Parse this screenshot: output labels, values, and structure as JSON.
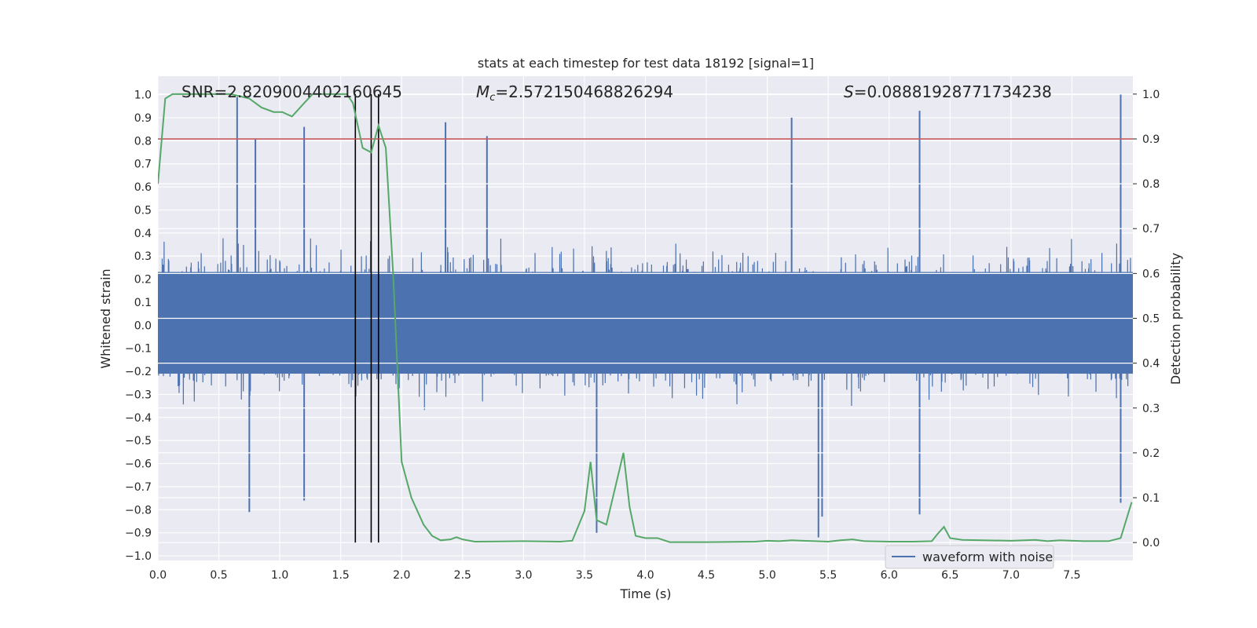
{
  "chart_data": {
    "type": "line",
    "title": "stats at each timestep for test data 18192 [signal=1]",
    "xlabel": "Time (s)",
    "ylabel": "Whitened strain",
    "ylabel_right": "Detection probability",
    "xlim": [
      0.0,
      8.0
    ],
    "ylim": [
      -1.02,
      1.08
    ],
    "ylim_right": [
      -0.04,
      1.04
    ],
    "x_ticks": [
      "0.0",
      "0.5",
      "1.0",
      "1.5",
      "2.0",
      "2.5",
      "3.0",
      "3.5",
      "4.0",
      "4.5",
      "5.0",
      "5.5",
      "6.0",
      "6.5",
      "7.0",
      "7.5"
    ],
    "x_tick_values": [
      0,
      0.5,
      1,
      1.5,
      2,
      2.5,
      3,
      3.5,
      4,
      4.5,
      5,
      5.5,
      6,
      6.5,
      7,
      7.5
    ],
    "y_ticks": [
      "1.0",
      "0.9",
      "0.8",
      "0.7",
      "0.6",
      "0.5",
      "0.4",
      "0.3",
      "0.2",
      "0.1",
      "0.0",
      "−0.1",
      "−0.2",
      "−0.3",
      "−0.4",
      "−0.5",
      "−0.6",
      "−0.7",
      "−0.8",
      "−0.9",
      "−1.0"
    ],
    "y_tick_values": [
      1.0,
      0.9,
      0.8,
      0.7,
      0.6,
      0.5,
      0.4,
      0.3,
      0.2,
      0.1,
      0.0,
      -0.1,
      -0.2,
      -0.3,
      -0.4,
      -0.5,
      -0.6,
      -0.7,
      -0.8,
      -0.9,
      -1.0
    ],
    "y_ticks_right": [
      "1.0",
      "0.9",
      "0.8",
      "0.7",
      "0.6",
      "0.5",
      "0.4",
      "0.3",
      "0.2",
      "0.1",
      "0.0"
    ],
    "y_tick_values_right": [
      1.0,
      0.9,
      0.8,
      0.7,
      0.6,
      0.5,
      0.4,
      0.3,
      0.2,
      0.1,
      0.0
    ],
    "annotations": {
      "snr": "SNR=2.8209004402160645",
      "mc_symbol": "M",
      "mc_subscript": "c",
      "mc_value": "=2.572150468826294",
      "s_symbol": "S",
      "s_value": "=0.08881928771734238"
    },
    "threshold": {
      "value": 0.9,
      "axis": "right",
      "color": "#c44e52"
    },
    "vertical_lines": [
      1.62,
      1.75,
      1.81
    ],
    "waveform": {
      "name": "waveform with noise",
      "color": "#4c72b0",
      "samples": 4096,
      "t_range": [
        0.0,
        7.99
      ],
      "envelope": [
        -0.35,
        0.42
      ],
      "peaks_top": [
        [
          0.65,
          0.99
        ],
        [
          0.8,
          0.81
        ],
        [
          1.2,
          0.86
        ],
        [
          2.36,
          0.88
        ],
        [
          2.7,
          0.82
        ],
        [
          5.2,
          0.9
        ],
        [
          6.25,
          0.93
        ],
        [
          7.9,
          1.0
        ]
      ],
      "peaks_bottom": [
        [
          0.75,
          -0.81
        ],
        [
          1.2,
          -0.76
        ],
        [
          3.6,
          -0.9
        ],
        [
          5.45,
          -0.83
        ],
        [
          5.42,
          -0.92
        ],
        [
          6.25,
          -0.82
        ],
        [
          7.9,
          -0.77
        ]
      ]
    },
    "probability": {
      "color": "#55a868",
      "t": [
        0.0,
        0.06,
        0.12,
        0.3,
        0.6,
        0.75,
        0.85,
        0.95,
        1.02,
        1.1,
        1.2,
        1.27,
        1.4,
        1.55,
        1.6,
        1.68,
        1.75,
        1.81,
        1.87,
        1.93,
        2.0,
        2.08,
        2.18,
        2.25,
        2.32,
        2.4,
        2.45,
        2.5,
        2.6,
        3.0,
        3.3,
        3.4,
        3.5,
        3.55,
        3.6,
        3.68,
        3.75,
        3.82,
        3.87,
        3.92,
        4.0,
        4.1,
        4.2,
        4.5,
        4.9,
        5.0,
        5.1,
        5.2,
        5.5,
        5.6,
        5.7,
        5.8,
        6.0,
        6.2,
        6.35,
        6.4,
        6.45,
        6.5,
        6.6,
        7.0,
        7.2,
        7.3,
        7.4,
        7.6,
        7.8,
        7.9,
        7.99
      ],
      "p": [
        0.8,
        0.99,
        1.0,
        1.0,
        1.0,
        0.99,
        0.97,
        0.96,
        0.96,
        0.95,
        0.98,
        1.0,
        1.0,
        1.0,
        0.98,
        0.88,
        0.87,
        0.93,
        0.88,
        0.6,
        0.18,
        0.1,
        0.04,
        0.015,
        0.005,
        0.007,
        0.012,
        0.007,
        0.002,
        0.003,
        0.002,
        0.004,
        0.07,
        0.18,
        0.05,
        0.04,
        0.12,
        0.2,
        0.08,
        0.015,
        0.01,
        0.01,
        0.001,
        0.001,
        0.002,
        0.004,
        0.003,
        0.005,
        0.002,
        0.005,
        0.007,
        0.003,
        0.002,
        0.002,
        0.003,
        0.02,
        0.035,
        0.01,
        0.006,
        0.004,
        0.006,
        0.003,
        0.005,
        0.003,
        0.003,
        0.01,
        0.09
      ]
    },
    "legend": {
      "label": "waveform with noise",
      "placement": "lower-right"
    },
    "grid": true
  }
}
